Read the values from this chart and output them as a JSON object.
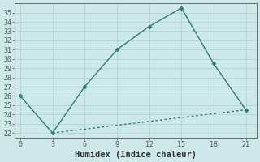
{
  "xlabel": "Humidex (Indice chaleur)",
  "line1_x": [
    0,
    3,
    6,
    9,
    12,
    15,
    18,
    21
  ],
  "line1_y": [
    26,
    22,
    27,
    31,
    33.5,
    35.5,
    29.5,
    24.5
  ],
  "line2_x": [
    3,
    21
  ],
  "line2_y": [
    22,
    24.5
  ],
  "line_color": "#2e7d72",
  "marker": "D",
  "marker_size": 2.5,
  "linewidth": 1.0,
  "bg_color": "#cce8e8",
  "grid_color": "#aad0d0",
  "ylim": [
    21.5,
    36.0
  ],
  "xlim": [
    -0.5,
    22
  ],
  "yticks": [
    22,
    23,
    24,
    25,
    26,
    27,
    28,
    29,
    30,
    31,
    32,
    33,
    34,
    35
  ],
  "xticks": [
    0,
    3,
    6,
    9,
    12,
    15,
    18,
    21
  ],
  "tick_fontsize": 6,
  "xlabel_fontsize": 7.5,
  "spine_color": "#555555"
}
